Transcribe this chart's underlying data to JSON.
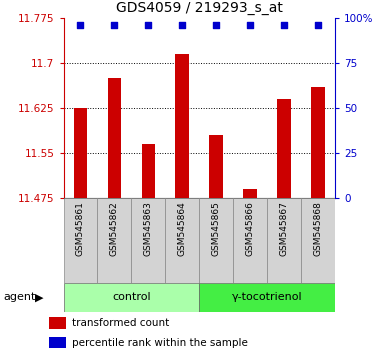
{
  "title": "GDS4059 / 219293_s_at",
  "samples": [
    "GSM545861",
    "GSM545862",
    "GSM545863",
    "GSM545864",
    "GSM545865",
    "GSM545866",
    "GSM545867",
    "GSM545868"
  ],
  "bar_values": [
    11.625,
    11.675,
    11.565,
    11.715,
    11.58,
    11.49,
    11.64,
    11.66
  ],
  "ymin": 11.475,
  "ymax": 11.775,
  "yticks": [
    11.475,
    11.55,
    11.625,
    11.7,
    11.775
  ],
  "ytick_labels": [
    "11.475",
    "11.55",
    "11.625",
    "11.7",
    "11.775"
  ],
  "y2ticks": [
    0,
    25,
    50,
    75,
    100
  ],
  "y2tick_labels": [
    "0",
    "25",
    "50",
    "75",
    "100%"
  ],
  "bar_color": "#cc0000",
  "dot_color": "#0000cc",
  "left_axis_color": "#cc0000",
  "right_axis_color": "#0000cc",
  "sample_box_color": "#d3d3d3",
  "groups": [
    {
      "label": "control",
      "start": 0,
      "end": 4,
      "color": "#aaffaa"
    },
    {
      "label": "γ-tocotrienol",
      "start": 4,
      "end": 8,
      "color": "#44ee44"
    }
  ],
  "group_row_label": "agent",
  "legend_items": [
    {
      "color": "#cc0000",
      "label": "transformed count"
    },
    {
      "color": "#0000cc",
      "label": "percentile rank within the sample"
    }
  ],
  "bar_width": 0.4,
  "dot_size": 20
}
